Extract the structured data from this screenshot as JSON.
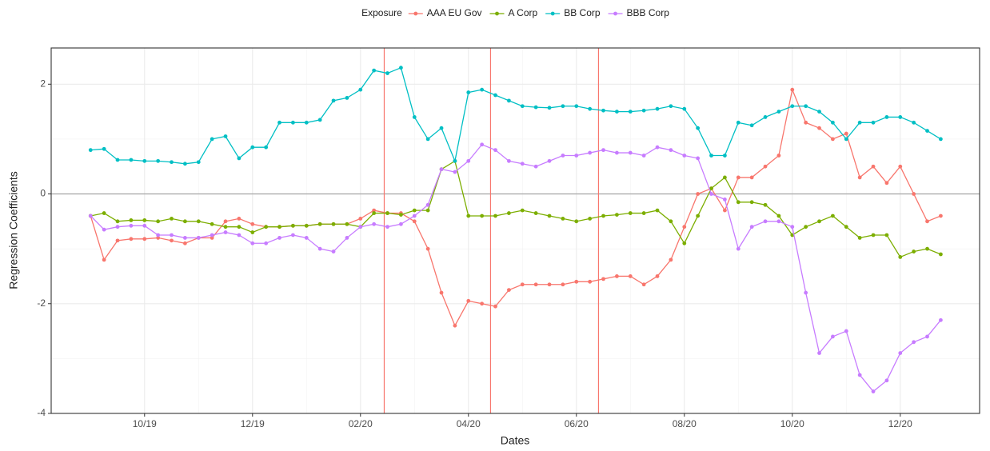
{
  "chart_data": {
    "type": "line",
    "x_label": "Dates",
    "y_label": "Regression Coefficients",
    "legend_title": "Exposure",
    "legend_position": "top",
    "x": [
      9.0,
      9.25,
      9.5,
      9.75,
      10.0,
      10.25,
      10.5,
      10.75,
      11.0,
      11.25,
      11.5,
      11.75,
      12.0,
      12.25,
      12.5,
      12.75,
      13.0,
      13.25,
      13.5,
      13.75,
      14.0,
      14.25,
      14.5,
      14.75,
      15.0,
      15.25,
      15.5,
      15.75,
      16.0,
      16.25,
      16.5,
      16.75,
      17.0,
      17.25,
      17.5,
      17.75,
      18.0,
      18.25,
      18.5,
      18.75,
      19.0,
      19.25,
      19.5,
      19.75,
      20.0,
      20.25,
      20.5,
      20.75,
      21.0,
      21.25,
      21.5,
      21.75,
      22.0,
      22.25,
      22.5,
      22.75,
      23.0,
      23.25,
      23.5,
      23.75,
      24.0,
      24.25,
      24.5,
      24.75
    ],
    "xlim": [
      8.27,
      25.47
    ],
    "xticks": [
      {
        "value": 10,
        "label": "10/19"
      },
      {
        "value": 12,
        "label": "12/19"
      },
      {
        "value": 14,
        "label": "02/20"
      },
      {
        "value": 16,
        "label": "04/20"
      },
      {
        "value": 18,
        "label": "06/20"
      },
      {
        "value": 20,
        "label": "08/20"
      },
      {
        "value": 22,
        "label": "10/20"
      },
      {
        "value": 24,
        "label": "12/20"
      }
    ],
    "ylim": [
      -4,
      2.66
    ],
    "yticks": [
      -4,
      -2,
      0,
      2
    ],
    "grid": true,
    "hline": 0,
    "hline_color": "#a6a6a6",
    "vlines": [
      14.44,
      16.41,
      18.41
    ],
    "vline_color": "#F8766D",
    "series": [
      {
        "name": "AAA EU Gov",
        "color": "#F8766D",
        "values": [
          -0.4,
          -1.2,
          -0.85,
          -0.82,
          -0.82,
          -0.8,
          -0.85,
          -0.9,
          -0.8,
          -0.8,
          -0.5,
          -0.45,
          -0.55,
          -0.6,
          -0.6,
          -0.58,
          -0.58,
          -0.55,
          -0.55,
          -0.55,
          -0.45,
          -0.3,
          -0.35,
          -0.35,
          -0.5,
          -1.0,
          -1.8,
          -2.4,
          -1.95,
          -2.0,
          -2.05,
          -1.75,
          -1.65,
          -1.65,
          -1.65,
          -1.65,
          -1.6,
          -1.6,
          -1.55,
          -1.5,
          -1.5,
          -1.65,
          -1.5,
          -1.2,
          -0.6,
          0.0,
          0.1,
          -0.3,
          0.3,
          0.3,
          0.5,
          0.7,
          1.9,
          1.3,
          1.2,
          1.0,
          1.1,
          0.3,
          0.5,
          0.2,
          0.5,
          0.0,
          -0.5,
          -0.4
        ]
      },
      {
        "name": "A Corp",
        "color": "#7CAE00",
        "values": [
          -0.4,
          -0.35,
          -0.5,
          -0.48,
          -0.48,
          -0.5,
          -0.45,
          -0.5,
          -0.5,
          -0.55,
          -0.6,
          -0.6,
          -0.7,
          -0.6,
          -0.6,
          -0.58,
          -0.58,
          -0.55,
          -0.55,
          -0.55,
          -0.6,
          -0.35,
          -0.35,
          -0.38,
          -0.3,
          -0.3,
          0.45,
          0.6,
          -0.4,
          -0.4,
          -0.4,
          -0.35,
          -0.3,
          -0.35,
          -0.4,
          -0.45,
          -0.5,
          -0.45,
          -0.4,
          -0.38,
          -0.35,
          -0.35,
          -0.3,
          -0.5,
          -0.9,
          -0.4,
          0.1,
          0.3,
          -0.15,
          -0.15,
          -0.2,
          -0.4,
          -0.75,
          -0.6,
          -0.5,
          -0.4,
          -0.6,
          -0.8,
          -0.75,
          -0.75,
          -1.15,
          -1.05,
          -1.0,
          -1.1
        ]
      },
      {
        "name": "BB Corp",
        "color": "#00BFC4",
        "values": [
          0.8,
          0.82,
          0.62,
          0.62,
          0.6,
          0.6,
          0.58,
          0.55,
          0.58,
          1.0,
          1.05,
          0.65,
          0.85,
          0.85,
          1.3,
          1.3,
          1.3,
          1.35,
          1.7,
          1.75,
          1.9,
          2.25,
          2.2,
          2.3,
          1.4,
          1.0,
          1.2,
          0.6,
          1.85,
          1.9,
          1.8,
          1.7,
          1.6,
          1.58,
          1.57,
          1.6,
          1.6,
          1.55,
          1.52,
          1.5,
          1.5,
          1.52,
          1.55,
          1.6,
          1.55,
          1.2,
          0.7,
          0.7,
          1.3,
          1.25,
          1.4,
          1.5,
          1.6,
          1.6,
          1.5,
          1.3,
          1.0,
          1.3,
          1.3,
          1.4,
          1.4,
          1.3,
          1.15,
          1.0
        ]
      },
      {
        "name": "BBB Corp",
        "color": "#C77CFF",
        "values": [
          -0.4,
          -0.65,
          -0.6,
          -0.58,
          -0.58,
          -0.75,
          -0.75,
          -0.8,
          -0.8,
          -0.75,
          -0.7,
          -0.75,
          -0.9,
          -0.9,
          -0.8,
          -0.75,
          -0.8,
          -1.0,
          -1.05,
          -0.8,
          -0.6,
          -0.55,
          -0.6,
          -0.55,
          -0.4,
          -0.2,
          0.45,
          0.4,
          0.6,
          0.9,
          0.8,
          0.6,
          0.55,
          0.5,
          0.6,
          0.7,
          0.7,
          0.75,
          0.8,
          0.75,
          0.75,
          0.7,
          0.85,
          0.8,
          0.7,
          0.65,
          0.0,
          -0.1,
          -1.0,
          -0.6,
          -0.5,
          -0.5,
          -0.6,
          -1.8,
          -2.9,
          -2.6,
          -2.5,
          -3.3,
          -3.6,
          -3.4,
          -2.9,
          -2.7,
          -2.6,
          -2.3
        ]
      }
    ]
  }
}
